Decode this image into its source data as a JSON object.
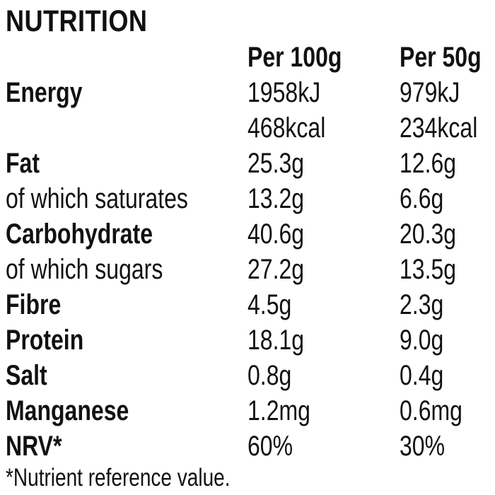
{
  "title": "NUTRITION",
  "table": {
    "columns": [
      "Per 100g",
      "Per 50g"
    ],
    "rows": [
      {
        "label": "Energy",
        "bold": true,
        "per100": "1958kJ",
        "per50": "979kJ"
      },
      {
        "label": "",
        "bold": false,
        "per100": "468kcal",
        "per50": "234kcal"
      },
      {
        "label": "Fat",
        "bold": true,
        "per100": "25.3g",
        "per50": "12.6g"
      },
      {
        "label": "of which saturates",
        "bold": false,
        "per100": "13.2g",
        "per50": "6.6g"
      },
      {
        "label": "Carbohydrate",
        "bold": true,
        "per100": "40.6g",
        "per50": "20.3g"
      },
      {
        "label": "of which sugars",
        "bold": false,
        "per100": "27.2g",
        "per50": "13.5g"
      },
      {
        "label": "Fibre",
        "bold": true,
        "per100": "4.5g",
        "per50": "2.3g"
      },
      {
        "label": "Protein",
        "bold": true,
        "per100": "18.1g",
        "per50": "9.0g"
      },
      {
        "label": "Salt",
        "bold": true,
        "per100": "0.8g",
        "per50": "0.4g"
      },
      {
        "label": "Manganese",
        "bold": true,
        "per100": "1.2mg",
        "per50": "0.6mg"
      },
      {
        "label": "NRV*",
        "bold": true,
        "per100": "60%",
        "per50": "30%"
      }
    ],
    "footnote": "*Nutrient reference value."
  },
  "colors": {
    "text": "#111111",
    "background": "#ffffff"
  }
}
